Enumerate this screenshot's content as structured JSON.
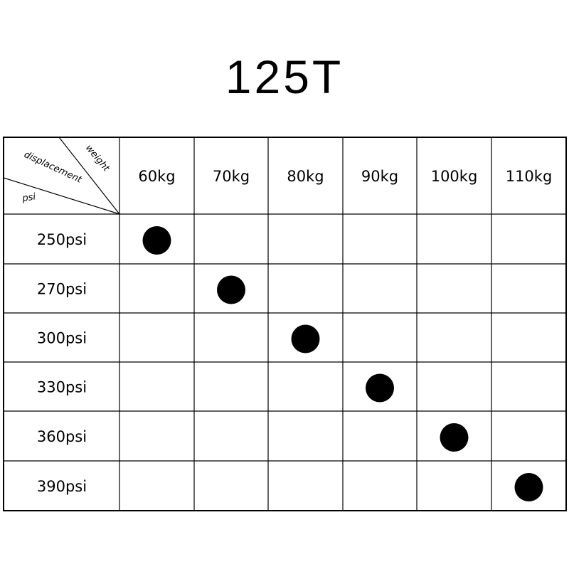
{
  "title": "125T",
  "corner": {
    "top": "weight",
    "middle": "displacement",
    "bottom": "psi"
  },
  "columns": [
    "60kg",
    "70kg",
    "80kg",
    "90kg",
    "100kg",
    "110kg"
  ],
  "rows": [
    {
      "label": "250psi",
      "marked_column": "60kg"
    },
    {
      "label": "270psi",
      "marked_column": "70kg"
    },
    {
      "label": "300psi",
      "marked_column": "80kg"
    },
    {
      "label": "330psi",
      "marked_column": "90kg"
    },
    {
      "label": "360psi",
      "marked_column": "100kg"
    },
    {
      "label": "390psi",
      "marked_column": "110kg"
    }
  ],
  "marker_color": "#000000"
}
